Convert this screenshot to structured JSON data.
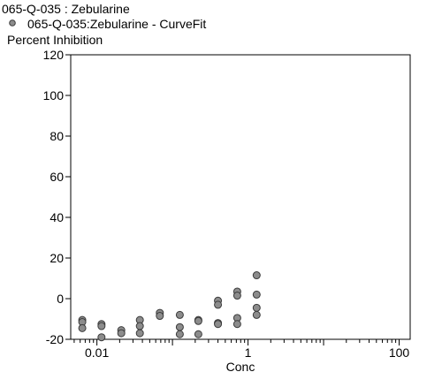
{
  "chart_data": {
    "type": "scatter",
    "title": "065-Q-035  : Zebularine",
    "legend": {
      "placement": "top-left",
      "entries": [
        {
          "label": "065-Q-035:Zebularine - CurveFit",
          "marker": "circle",
          "color": "#8c8c8c"
        }
      ]
    },
    "xlabel": "Conc",
    "ylabel": "Percent Inhibition",
    "xscale": "log",
    "xlim": [
      0.0045,
      140
    ],
    "ylim": [
      -20,
      120
    ],
    "xticks": [
      0.01,
      1,
      100
    ],
    "xtick_labels": [
      "0.01",
      "1",
      "100"
    ],
    "yticks": [
      -20,
      0,
      20,
      40,
      60,
      80,
      100,
      120
    ],
    "ytick_labels": [
      "-20",
      "0",
      "20",
      "40",
      "60",
      "80",
      "100",
      "120"
    ],
    "grid": false,
    "series": [
      {
        "name": "065-Q-035:Zebularine - CurveFit",
        "color": "#8c8c8c",
        "points": [
          {
            "x": 0.0064,
            "y": -10.5
          },
          {
            "x": 0.0064,
            "y": -11.5
          },
          {
            "x": 0.0064,
            "y": -14.5
          },
          {
            "x": 0.0115,
            "y": -12.5
          },
          {
            "x": 0.0115,
            "y": -13.5
          },
          {
            "x": 0.0115,
            "y": -19.0
          },
          {
            "x": 0.021,
            "y": -15.5
          },
          {
            "x": 0.021,
            "y": -17.0
          },
          {
            "x": 0.037,
            "y": -10.5
          },
          {
            "x": 0.037,
            "y": -13.5
          },
          {
            "x": 0.037,
            "y": -17.0
          },
          {
            "x": 0.068,
            "y": -7.0
          },
          {
            "x": 0.068,
            "y": -8.5
          },
          {
            "x": 0.125,
            "y": -8.0
          },
          {
            "x": 0.125,
            "y": -14.0
          },
          {
            "x": 0.125,
            "y": -17.5
          },
          {
            "x": 0.22,
            "y": -10.5
          },
          {
            "x": 0.22,
            "y": -11.0
          },
          {
            "x": 0.22,
            "y": -17.5
          },
          {
            "x": 0.4,
            "y": -1.0
          },
          {
            "x": 0.4,
            "y": -3.0
          },
          {
            "x": 0.4,
            "y": -12.0
          },
          {
            "x": 0.4,
            "y": -12.5
          },
          {
            "x": 0.72,
            "y": 3.5
          },
          {
            "x": 0.72,
            "y": 1.5
          },
          {
            "x": 0.72,
            "y": -9.5
          },
          {
            "x": 0.72,
            "y": -12.5
          },
          {
            "x": 1.3,
            "y": 11.5
          },
          {
            "x": 1.3,
            "y": 2.0
          },
          {
            "x": 1.3,
            "y": -4.5
          },
          {
            "x": 1.3,
            "y": -8.0
          }
        ]
      }
    ]
  }
}
